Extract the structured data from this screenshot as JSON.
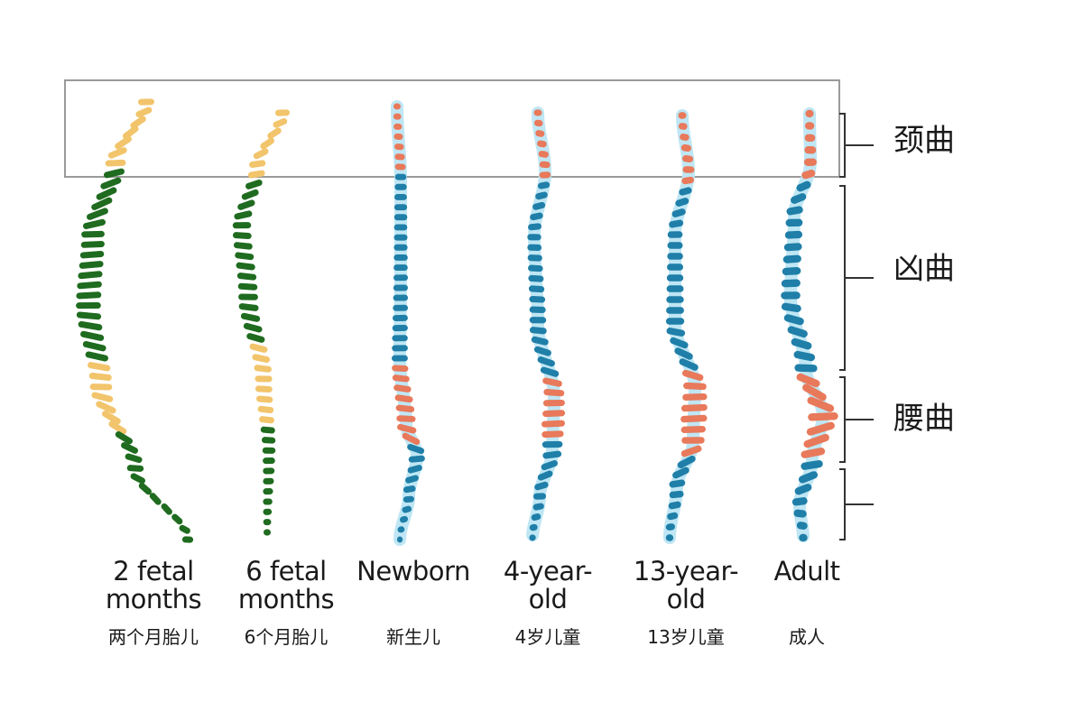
{
  "colors": {
    "early_thoracic": "#1f6b1f",
    "early_other": "#f2c46b",
    "cervical_lumbar": "#e8795a",
    "thoracic_sacral": "#1f7fa8",
    "halo": "#bfe6f4",
    "frame": "#9a9a9a"
  },
  "region_labels": {
    "cervical": "颈曲",
    "thoracic": "凶曲",
    "lumbar": "腰曲"
  },
  "stages": [
    {
      "en_line1": "2 fetal",
      "en_line2": "months",
      "zh": "两个月胎儿",
      "scheme": "fetal"
    },
    {
      "en_line1": "6 fetal",
      "en_line2": "months",
      "zh": "6个月胎儿",
      "scheme": "fetal"
    },
    {
      "en_line1": "Newborn",
      "en_line2": "",
      "zh": "新生儿",
      "scheme": "postnatal"
    },
    {
      "en_line1": "4-year-",
      "en_line2": "old",
      "zh": "4岁儿童",
      "scheme": "postnatal"
    },
    {
      "en_line1": "13-year-",
      "en_line2": "old",
      "zh": "13岁儿童",
      "scheme": "postnatal"
    },
    {
      "en_line1": "Adult",
      "en_line2": "",
      "zh": "成人",
      "scheme": "postnatal"
    }
  ]
}
